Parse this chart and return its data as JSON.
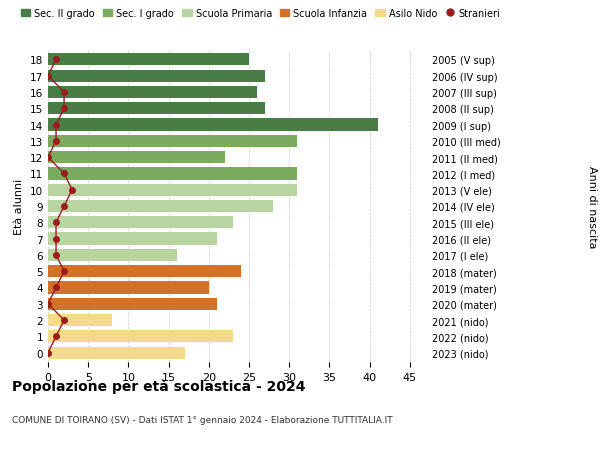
{
  "ages": [
    18,
    17,
    16,
    15,
    14,
    13,
    12,
    11,
    10,
    9,
    8,
    7,
    6,
    5,
    4,
    3,
    2,
    1,
    0
  ],
  "years": [
    "2005 (V sup)",
    "2006 (IV sup)",
    "2007 (III sup)",
    "2008 (II sup)",
    "2009 (I sup)",
    "2010 (III med)",
    "2011 (II med)",
    "2012 (I med)",
    "2013 (V ele)",
    "2014 (IV ele)",
    "2015 (III ele)",
    "2016 (II ele)",
    "2017 (I ele)",
    "2018 (mater)",
    "2019 (mater)",
    "2020 (mater)",
    "2021 (nido)",
    "2022 (nido)",
    "2023 (nido)"
  ],
  "bar_values": [
    25,
    27,
    26,
    27,
    41,
    31,
    22,
    31,
    31,
    28,
    23,
    21,
    16,
    24,
    20,
    21,
    8,
    23,
    17
  ],
  "bar_colors": [
    "#4a7c45",
    "#4a7c45",
    "#4a7c45",
    "#4a7c45",
    "#4a7c45",
    "#7aab5e",
    "#7aab5e",
    "#7aab5e",
    "#b8d4a0",
    "#b8d4a0",
    "#b8d4a0",
    "#b8d4a0",
    "#b8d4a0",
    "#d2722a",
    "#d2722a",
    "#d2722a",
    "#f5d98b",
    "#f5d98b",
    "#f5d98b"
  ],
  "stranieri": [
    1,
    0,
    2,
    2,
    1,
    1,
    0,
    2,
    3,
    2,
    1,
    1,
    1,
    2,
    1,
    0,
    2,
    1,
    0
  ],
  "stranieri_color": "#9b1c1c",
  "legend_labels": [
    "Sec. II grado",
    "Sec. I grado",
    "Scuola Primaria",
    "Scuola Infanzia",
    "Asilo Nido",
    "Stranieri"
  ],
  "legend_colors": [
    "#4a7c45",
    "#7aab5e",
    "#b8d4a0",
    "#d2722a",
    "#f5d98b",
    "#9b1c1c"
  ],
  "title": "Popolazione per età scolastica - 2024",
  "subtitle": "COMUNE DI TOIRANO (SV) - Dati ISTAT 1° gennaio 2024 - Elaborazione TUTTITALIA.IT",
  "ylabel_left": "Età alunni",
  "ylabel_right": "Anni di nascita",
  "xlim": [
    0,
    47
  ],
  "bar_height": 0.75,
  "grid_color": "#cccccc",
  "bg_color": "#ffffff"
}
